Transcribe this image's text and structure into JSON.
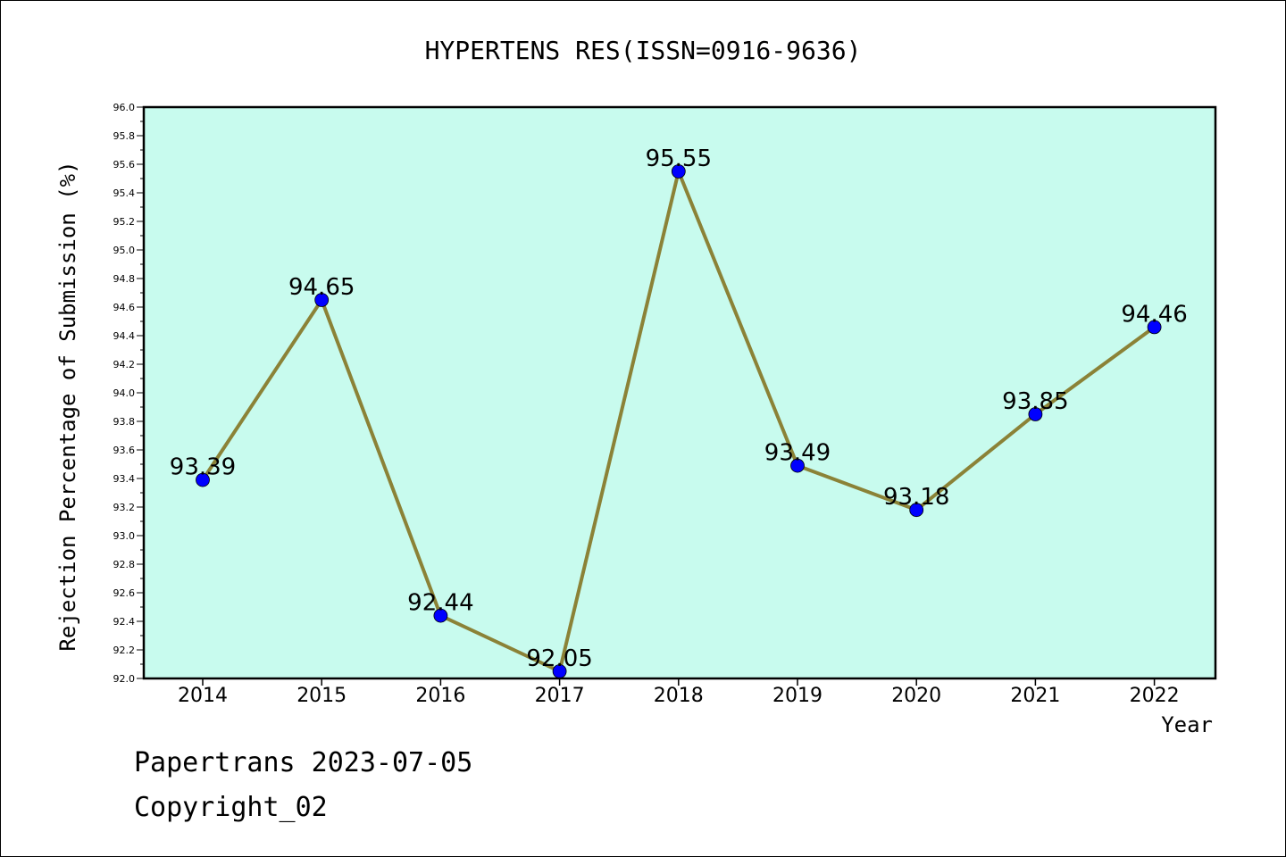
{
  "chart_data": {
    "type": "line",
    "title": "HYPERTENS RES(ISSN=0916-9636)",
    "xlabel": "Year",
    "ylabel": "Rejection Percentage of Submission (%)",
    "categories": [
      "2014",
      "2015",
      "2016",
      "2017",
      "2018",
      "2019",
      "2020",
      "2021",
      "2022"
    ],
    "values": [
      93.39,
      94.65,
      92.44,
      92.05,
      95.55,
      93.49,
      93.18,
      93.85,
      94.46
    ],
    "data_labels": [
      "93.39",
      "94.65",
      "92.44",
      "92.05",
      "95.55",
      "93.49",
      "93.18",
      "93.85",
      "94.46"
    ],
    "ylim": [
      92.0,
      96.0
    ],
    "yticks": [
      "92.0",
      "92.2",
      "92.4",
      "92.6",
      "92.8",
      "93.0",
      "93.2",
      "93.4",
      "93.6",
      "93.8",
      "94.0",
      "94.2",
      "94.4",
      "94.6",
      "94.8",
      "95.0",
      "95.2",
      "95.4",
      "95.6",
      "95.8",
      "96.0"
    ],
    "grid": false,
    "colors": {
      "plot_background": "#c8fbee",
      "line": "#8b8237",
      "marker": "#0000ff"
    }
  },
  "footer": {
    "line1": "Papertrans 2023-07-05",
    "line2": "Copyright_02"
  }
}
